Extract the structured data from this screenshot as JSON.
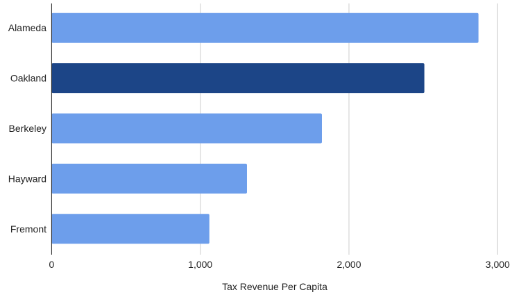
{
  "chart_data": {
    "type": "bar",
    "orientation": "horizontal",
    "categories": [
      "Alameda",
      "Oakland",
      "Berkeley",
      "Hayward",
      "Fremont"
    ],
    "values": [
      2871,
      2507,
      1818,
      1314,
      1061
    ],
    "highlight": "Oakland",
    "colors": {
      "default": "#6d9eeb",
      "highlight": "#1c4587"
    },
    "title": "",
    "xlabel": "Tax Revenue Per Capita",
    "ylabel": "",
    "xlim": [
      0,
      3000
    ],
    "xticks": [
      0,
      1000,
      2000,
      3000
    ],
    "xtick_labels": [
      "0",
      "1,000",
      "2,000",
      "3,000"
    ],
    "grid": true,
    "legend": "none"
  }
}
